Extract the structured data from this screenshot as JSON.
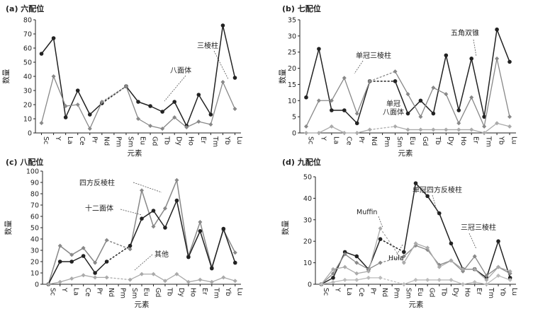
{
  "chart_data": [
    {
      "type": "line",
      "title": "(a) 六配位",
      "xlabel": "元素",
      "ylabel": "数量",
      "categories": [
        "Sc",
        "Y",
        "La",
        "Ce",
        "Pr",
        "Nd",
        "Pm",
        "Sm",
        "Eu",
        "Gd",
        "Tb",
        "Dy",
        "Ho",
        "Er",
        "Tm",
        "Yb",
        "Lu"
      ],
      "ylim": [
        0,
        80
      ],
      "yticks": [
        0,
        10,
        20,
        30,
        40,
        50,
        60,
        70,
        80
      ],
      "grid": false,
      "series": [
        {
          "name": "三棱柱",
          "color": "#222222",
          "values": [
            56,
            67,
            11,
            30,
            13,
            21,
            null,
            33,
            22,
            19,
            15,
            22,
            5,
            27,
            13,
            76,
            39
          ]
        },
        {
          "name": "八面体",
          "color": "#888888",
          "values": [
            7,
            40,
            19,
            20,
            3,
            22,
            null,
            33,
            10,
            5,
            3,
            11,
            4,
            8,
            6,
            36,
            17
          ]
        }
      ],
      "annotations": [
        "三棱柱",
        "八面体"
      ]
    },
    {
      "type": "line",
      "title": "(b) 七配位",
      "xlabel": "元素",
      "ylabel": "数量",
      "categories": [
        "Sc",
        "Y",
        "La",
        "Ce",
        "Pr",
        "Nd",
        "Pm",
        "Sm",
        "Eu",
        "Gd",
        "Tb",
        "Dy",
        "Ho",
        "Er",
        "Tm",
        "Yb",
        "Lu"
      ],
      "ylim": [
        0,
        35
      ],
      "yticks": [
        0,
        5,
        10,
        15,
        20,
        25,
        30,
        35
      ],
      "grid": false,
      "series": [
        {
          "name": "五角双锥",
          "color": "#222222",
          "values": [
            11,
            26,
            7,
            7,
            3,
            16,
            null,
            16,
            6,
            10,
            6,
            24,
            7,
            23,
            5,
            32,
            22
          ]
        },
        {
          "name": "单冠三棱柱",
          "color": "#888888",
          "values": [
            2,
            10,
            10,
            17,
            6,
            16,
            null,
            19,
            12,
            5,
            14,
            12,
            3,
            11,
            2,
            23,
            5
          ]
        },
        {
          "name": "单冠八面体",
          "color": "#aaaaaa",
          "values": [
            0,
            0,
            2,
            0,
            0,
            1,
            null,
            2,
            1,
            1,
            1,
            1,
            1,
            1,
            0,
            3,
            2
          ]
        }
      ],
      "annotations": [
        "五角双锥",
        "单冠三棱柱",
        "单冠",
        "八面体"
      ]
    },
    {
      "type": "line",
      "title": "(c) 八配位",
      "xlabel": "元素",
      "ylabel": "数量",
      "categories": [
        "Sc",
        "Y",
        "La",
        "Ce",
        "Pr",
        "Nd",
        "Pm",
        "Sm",
        "Eu",
        "Gd",
        "Tb",
        "Dy",
        "Ho",
        "Er",
        "Tm",
        "Yb",
        "Lu"
      ],
      "ylim": [
        0,
        100
      ],
      "yticks": [
        0,
        10,
        20,
        30,
        40,
        50,
        60,
        70,
        80,
        90,
        100
      ],
      "grid": false,
      "series": [
        {
          "name": "四方反棱柱",
          "color": "#888888",
          "values": [
            0,
            34,
            26,
            32,
            19,
            39,
            null,
            31,
            83,
            51,
            67,
            92,
            25,
            55,
            15,
            48,
            28
          ]
        },
        {
          "name": "十二面体",
          "color": "#222222",
          "values": [
            0,
            20,
            20,
            25,
            10,
            20,
            null,
            34,
            58,
            65,
            50,
            74,
            24,
            47,
            14,
            49,
            19
          ]
        },
        {
          "name": "其他",
          "color": "#aaaaaa",
          "values": [
            0,
            2,
            5,
            8,
            6,
            6,
            null,
            4,
            9,
            9,
            3,
            9,
            2,
            4,
            2,
            6,
            3
          ]
        }
      ],
      "annotations": [
        "四方反棱柱",
        "十二面体",
        "其他"
      ]
    },
    {
      "type": "line",
      "title": "(d) 九配位",
      "xlabel": "元素",
      "ylabel": "数量",
      "categories": [
        "Sc",
        "Y",
        "La",
        "Ce",
        "Pr",
        "Nd",
        "Pm",
        "Sm",
        "Eu",
        "Gd",
        "Tb",
        "Dy",
        "Ho",
        "Er",
        "Tm",
        "Yb",
        "Lu"
      ],
      "ylim": [
        0,
        50
      ],
      "yticks": [
        0,
        10,
        20,
        30,
        40,
        50
      ],
      "grid": false,
      "series": [
        {
          "name": "单冠四方反棱柱",
          "color": "#222222",
          "values": [
            0,
            3,
            15,
            13,
            7,
            21,
            null,
            15,
            47,
            41,
            33,
            19,
            7,
            7,
            3,
            20,
            3
          ]
        },
        {
          "name": "三冠三棱柱",
          "color": "#888888",
          "values": [
            0,
            5,
            14,
            10,
            7,
            10,
            null,
            13,
            18,
            16,
            9,
            11,
            6,
            13,
            4,
            8,
            5
          ]
        },
        {
          "name": "Muffin",
          "color": "#aaaaaa",
          "values": [
            0,
            7,
            8,
            5,
            6,
            26,
            null,
            10,
            19,
            17,
            8,
            11,
            7,
            7,
            2,
            8,
            6
          ]
        },
        {
          "name": "Hula",
          "color": "#bbbbbb",
          "values": [
            0,
            1,
            2,
            2,
            3,
            3,
            null,
            0,
            2,
            2,
            2,
            2,
            0,
            1,
            0,
            4,
            2
          ]
        }
      ],
      "annotations": [
        "单冠四方反棱柱",
        "Muffin",
        "Hula",
        "三冠三棱柱"
      ]
    }
  ]
}
